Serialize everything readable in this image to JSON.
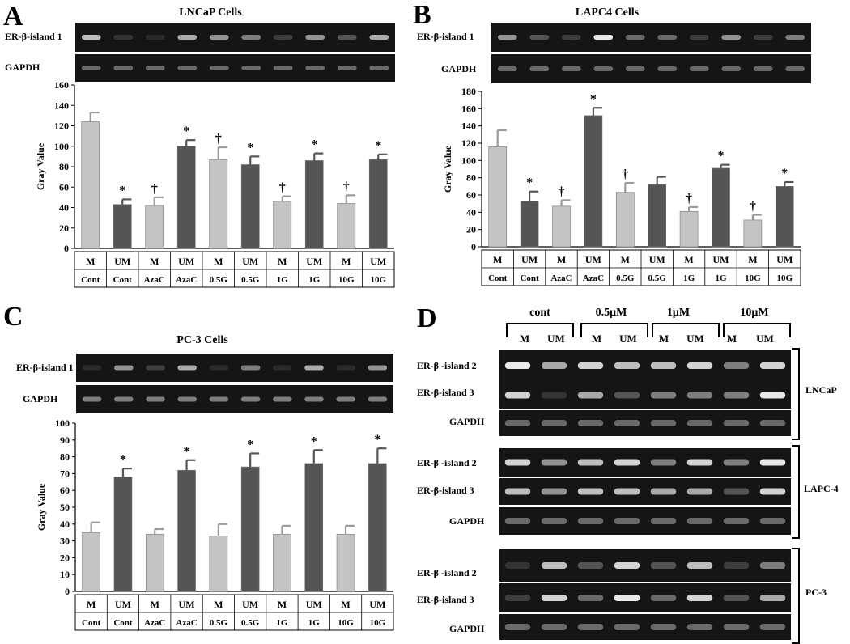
{
  "panels": [
    {
      "letter": "A",
      "title": "LNCaP Cells",
      "gel_rows": [
        "ER-β-island 1",
        "GAPDH"
      ],
      "chart": {
        "type": "bar",
        "ylabel": "Gray Value",
        "ylim": [
          0,
          160
        ],
        "yticks": [
          0,
          20,
          40,
          60,
          80,
          100,
          120,
          140,
          160
        ],
        "row1": [
          "M",
          "UM",
          "M",
          "UM",
          "M",
          "UM",
          "M",
          "UM",
          "M",
          "UM"
        ],
        "row2": [
          "Cont",
          "Cont",
          "AzaC",
          "AzaC",
          "0.5G",
          "0.5G",
          "1G",
          "1G",
          "10G",
          "10G"
        ],
        "values": [
          124,
          43,
          42,
          100,
          87,
          82,
          46,
          86,
          44,
          87
        ],
        "errors": [
          9,
          5,
          8,
          6,
          12,
          8,
          5,
          7,
          8,
          5
        ],
        "marks": [
          "",
          "*",
          "†",
          "*",
          "†",
          "*",
          "†",
          "*",
          "†",
          "*"
        ]
      }
    },
    {
      "letter": "B",
      "title": "LAPC4 Cells",
      "gel_rows": [
        "ER-β-island 1",
        "GAPDH"
      ],
      "chart": {
        "type": "bar",
        "ylabel": "Gray Value",
        "ylim": [
          0,
          180
        ],
        "yticks": [
          0,
          20,
          40,
          60,
          80,
          100,
          120,
          140,
          160,
          180
        ],
        "row1": [
          "M",
          "UM",
          "M",
          "UM",
          "M",
          "UM",
          "M",
          "UM",
          "M",
          "UM"
        ],
        "row2": [
          "Cont",
          "Cont",
          "AzaC",
          "AzaC",
          "0.5G",
          "0.5G",
          "1G",
          "1G",
          "10G",
          "10G"
        ],
        "values": [
          116,
          53,
          47,
          152,
          63,
          72,
          41,
          91,
          31,
          70
        ],
        "errors": [
          19,
          11,
          7,
          9,
          11,
          9,
          5,
          4,
          6,
          5
        ],
        "marks": [
          "",
          "*",
          "†",
          "*",
          "†",
          "",
          "†",
          "*",
          "†",
          "*"
        ]
      }
    },
    {
      "letter": "C",
      "title": "PC-3 Cells",
      "gel_rows": [
        "ER-β-island 1",
        "GAPDH"
      ],
      "chart": {
        "type": "bar",
        "ylabel": "Gray Value",
        "ylim": [
          0,
          100
        ],
        "yticks": [
          0,
          10,
          20,
          30,
          40,
          50,
          60,
          70,
          80,
          90,
          100
        ],
        "row1": [
          "M",
          "UM",
          "M",
          "UM",
          "M",
          "UM",
          "M",
          "UM",
          "M",
          "UM"
        ],
        "row2": [
          "Cont",
          "Cont",
          "AzaC",
          "AzaC",
          "0.5G",
          "0.5G",
          "1G",
          "1G",
          "10G",
          "10G"
        ],
        "values": [
          35,
          68,
          34,
          72,
          33,
          74,
          34,
          76,
          34,
          76
        ],
        "errors": [
          6,
          5,
          3,
          6,
          7,
          8,
          5,
          8,
          5,
          9
        ],
        "marks": [
          "",
          "*",
          "",
          "*",
          "",
          "*",
          "",
          "*",
          "",
          "*"
        ]
      }
    }
  ],
  "panel_d": {
    "letter": "D",
    "concentrations": [
      "cont",
      "0.5μM",
      "1μM",
      "10μM"
    ],
    "lanes": [
      "M",
      "UM",
      "M",
      "UM",
      "M",
      "UM",
      "M",
      "UM"
    ],
    "groups": [
      {
        "name": "LNCaP",
        "rows": [
          "ER-β -island 2",
          "ER-β-island 3",
          "GAPDH"
        ]
      },
      {
        "name": "LAPC-4",
        "rows": [
          "ER-β -island 2",
          "ER-β-island 3",
          "GAPDH"
        ]
      },
      {
        "name": "PC-3",
        "rows": [
          "ER-β -island 2",
          "ER-β-island 3",
          "GAPDH"
        ]
      }
    ]
  },
  "colors": {
    "methylated_bar": "#c4c4c4",
    "unmethylated_bar": "#555555",
    "gel_background": "#151515",
    "band": "#e8e8e8"
  }
}
